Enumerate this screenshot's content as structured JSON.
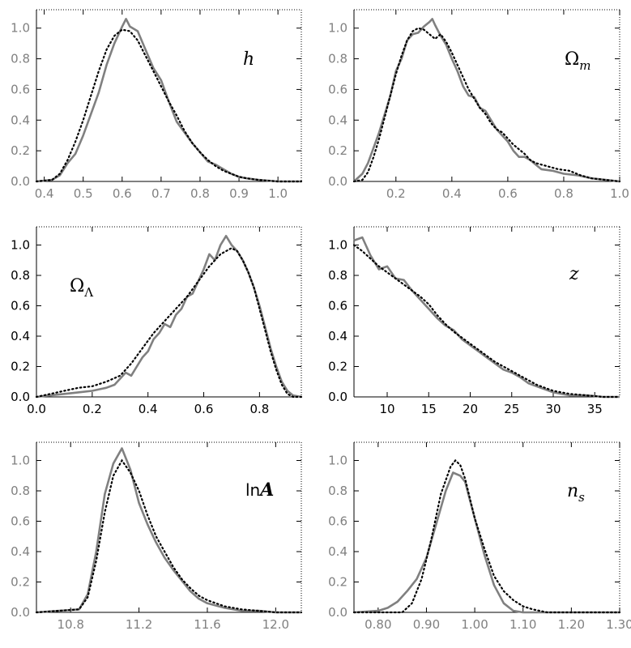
{
  "figure": {
    "line_styles": {
      "solid_color": "#808080",
      "dotted_color": "#000000"
    }
  },
  "chart_data": [
    {
      "type": "line",
      "param_label": "h",
      "xlim": [
        0.38,
        1.06
      ],
      "ylim": [
        0,
        1.12
      ],
      "xticks": [
        0.4,
        0.5,
        0.6,
        0.7,
        0.8,
        0.9,
        1.0
      ],
      "xtick_labels": [
        "0.4",
        "0.5",
        "0.6",
        "0.7",
        "0.8",
        "0.9",
        "1.0"
      ],
      "yticks": [
        0.0,
        0.2,
        0.4,
        0.6,
        0.8,
        1.0
      ],
      "ytick_labels": [
        "0.0",
        "0.2",
        "0.4",
        "0.6",
        "0.8",
        "1.0"
      ],
      "tick_label_color": "#808080",
      "series": [
        {
          "style": "solid",
          "x": [
            0.38,
            0.42,
            0.44,
            0.46,
            0.48,
            0.5,
            0.52,
            0.54,
            0.56,
            0.58,
            0.6,
            0.61,
            0.62,
            0.64,
            0.66,
            0.68,
            0.7,
            0.72,
            0.74,
            0.76,
            0.78,
            0.8,
            0.82,
            0.84,
            0.86,
            0.88,
            0.9,
            0.92,
            0.95,
            1.0,
            1.06
          ],
          "y": [
            0.0,
            0.01,
            0.04,
            0.12,
            0.18,
            0.3,
            0.44,
            0.58,
            0.76,
            0.9,
            1.01,
            1.06,
            1.01,
            0.98,
            0.86,
            0.74,
            0.66,
            0.52,
            0.39,
            0.32,
            0.25,
            0.19,
            0.13,
            0.11,
            0.08,
            0.05,
            0.03,
            0.02,
            0.01,
            0.0,
            0.0
          ]
        },
        {
          "style": "dotted",
          "x": [
            0.38,
            0.42,
            0.44,
            0.46,
            0.48,
            0.5,
            0.52,
            0.54,
            0.56,
            0.58,
            0.6,
            0.62,
            0.64,
            0.66,
            0.68,
            0.7,
            0.72,
            0.74,
            0.76,
            0.78,
            0.8,
            0.82,
            0.84,
            0.86,
            0.88,
            0.9,
            0.92,
            0.95,
            1.0,
            1.06
          ],
          "y": [
            0.0,
            0.01,
            0.05,
            0.14,
            0.26,
            0.4,
            0.56,
            0.72,
            0.86,
            0.95,
            0.99,
            0.98,
            0.92,
            0.82,
            0.72,
            0.62,
            0.52,
            0.43,
            0.33,
            0.25,
            0.19,
            0.14,
            0.1,
            0.07,
            0.05,
            0.03,
            0.02,
            0.01,
            0.0,
            0.0
          ]
        }
      ]
    },
    {
      "type": "line",
      "param_label": "Ω",
      "param_subscript": "m",
      "xlim": [
        0.05,
        1.0
      ],
      "ylim": [
        0,
        1.12
      ],
      "xticks": [
        0.2,
        0.4,
        0.6,
        0.8,
        1.0
      ],
      "xtick_labels": [
        "0.2",
        "0.4",
        "0.6",
        "0.8",
        "1.0"
      ],
      "yticks": [
        0.0,
        0.2,
        0.4,
        0.6,
        0.8,
        1.0
      ],
      "ytick_labels": [
        "0.0",
        "0.2",
        "0.4",
        "0.6",
        "0.8",
        "1.0"
      ],
      "tick_label_color": "#808080",
      "series": [
        {
          "style": "solid",
          "x": [
            0.05,
            0.08,
            0.1,
            0.12,
            0.14,
            0.16,
            0.18,
            0.2,
            0.22,
            0.24,
            0.26,
            0.28,
            0.3,
            0.32,
            0.33,
            0.34,
            0.36,
            0.38,
            0.4,
            0.42,
            0.44,
            0.46,
            0.48,
            0.5,
            0.52,
            0.54,
            0.56,
            0.58,
            0.6,
            0.62,
            0.64,
            0.66,
            0.68,
            0.7,
            0.72,
            0.76,
            0.8,
            0.85,
            0.9,
            0.95,
            1.0
          ],
          "y": [
            0.0,
            0.05,
            0.12,
            0.22,
            0.32,
            0.44,
            0.56,
            0.72,
            0.8,
            0.92,
            0.96,
            0.97,
            1.01,
            1.04,
            1.06,
            1.02,
            0.95,
            0.89,
            0.8,
            0.72,
            0.62,
            0.56,
            0.55,
            0.48,
            0.46,
            0.4,
            0.34,
            0.3,
            0.26,
            0.2,
            0.16,
            0.16,
            0.14,
            0.11,
            0.08,
            0.07,
            0.05,
            0.04,
            0.02,
            0.01,
            0.0
          ]
        },
        {
          "style": "dotted",
          "x": [
            0.05,
            0.08,
            0.1,
            0.12,
            0.14,
            0.16,
            0.18,
            0.2,
            0.22,
            0.24,
            0.26,
            0.28,
            0.3,
            0.32,
            0.34,
            0.36,
            0.38,
            0.4,
            0.42,
            0.44,
            0.46,
            0.48,
            0.5,
            0.52,
            0.54,
            0.56,
            0.58,
            0.6,
            0.62,
            0.64,
            0.66,
            0.68,
            0.7,
            0.74,
            0.78,
            0.82,
            0.86,
            0.9,
            0.95,
            1.0
          ],
          "y": [
            0.0,
            0.01,
            0.06,
            0.16,
            0.28,
            0.42,
            0.56,
            0.7,
            0.82,
            0.92,
            0.98,
            1.0,
            0.99,
            0.96,
            0.93,
            0.96,
            0.91,
            0.84,
            0.76,
            0.68,
            0.6,
            0.54,
            0.48,
            0.44,
            0.38,
            0.34,
            0.32,
            0.28,
            0.24,
            0.21,
            0.18,
            0.14,
            0.12,
            0.1,
            0.08,
            0.07,
            0.04,
            0.02,
            0.01,
            0.0
          ]
        }
      ]
    },
    {
      "type": "line",
      "param_label": "Ω",
      "param_subscript": "Λ",
      "xlim": [
        0.0,
        0.95
      ],
      "ylim": [
        0,
        1.12
      ],
      "xticks": [
        0.0,
        0.2,
        0.4,
        0.6,
        0.8
      ],
      "xtick_labels": [
        "0.0",
        "0.2",
        "0.4",
        "0.6",
        "0.8"
      ],
      "yticks": [
        0.0,
        0.2,
        0.4,
        0.6,
        0.8,
        1.0
      ],
      "ytick_labels": [
        "0.0",
        "0.2",
        "0.4",
        "0.6",
        "0.8",
        "1.0"
      ],
      "tick_label_color": "#000000",
      "series": [
        {
          "style": "solid",
          "x": [
            0.0,
            0.05,
            0.1,
            0.15,
            0.2,
            0.25,
            0.28,
            0.3,
            0.32,
            0.34,
            0.36,
            0.38,
            0.4,
            0.42,
            0.44,
            0.46,
            0.48,
            0.5,
            0.52,
            0.54,
            0.56,
            0.58,
            0.6,
            0.62,
            0.64,
            0.66,
            0.68,
            0.7,
            0.72,
            0.74,
            0.76,
            0.78,
            0.8,
            0.82,
            0.84,
            0.86,
            0.88,
            0.9,
            0.92,
            0.95
          ],
          "y": [
            0.0,
            0.01,
            0.02,
            0.03,
            0.04,
            0.06,
            0.08,
            0.12,
            0.16,
            0.14,
            0.2,
            0.26,
            0.3,
            0.38,
            0.42,
            0.48,
            0.46,
            0.54,
            0.58,
            0.66,
            0.68,
            0.76,
            0.84,
            0.94,
            0.9,
            1.0,
            1.06,
            1.0,
            0.96,
            0.9,
            0.82,
            0.72,
            0.6,
            0.46,
            0.32,
            0.2,
            0.1,
            0.04,
            0.01,
            0.0
          ]
        },
        {
          "style": "dotted",
          "x": [
            0.0,
            0.05,
            0.1,
            0.15,
            0.2,
            0.25,
            0.3,
            0.34,
            0.38,
            0.42,
            0.46,
            0.5,
            0.54,
            0.58,
            0.62,
            0.66,
            0.7,
            0.72,
            0.74,
            0.76,
            0.78,
            0.8,
            0.82,
            0.84,
            0.86,
            0.88,
            0.9,
            0.92,
            0.95
          ],
          "y": [
            0.0,
            0.02,
            0.04,
            0.06,
            0.07,
            0.1,
            0.14,
            0.22,
            0.32,
            0.42,
            0.5,
            0.58,
            0.66,
            0.76,
            0.86,
            0.94,
            0.98,
            0.96,
            0.9,
            0.82,
            0.72,
            0.58,
            0.44,
            0.3,
            0.18,
            0.08,
            0.02,
            0.0,
            0.0
          ]
        }
      ]
    },
    {
      "type": "line",
      "param_label": "z",
      "xlim": [
        6,
        38
      ],
      "ylim": [
        0,
        1.12
      ],
      "xticks": [
        10,
        15,
        20,
        25,
        30,
        35
      ],
      "xtick_labels": [
        "10",
        "15",
        "20",
        "25",
        "30",
        "35"
      ],
      "yticks": [
        0.0,
        0.2,
        0.4,
        0.6,
        0.8,
        1.0
      ],
      "ytick_labels": [
        "0.0",
        "0.2",
        "0.4",
        "0.6",
        "0.8",
        "1.0"
      ],
      "tick_label_color": "#000000",
      "series": [
        {
          "style": "solid",
          "x": [
            6,
            7,
            8,
            9,
            10,
            11,
            12,
            13,
            14,
            15,
            16,
            17,
            18,
            19,
            20,
            21,
            22,
            23,
            24,
            25,
            26,
            27,
            28,
            29,
            30,
            32,
            34,
            36,
            38
          ],
          "y": [
            1.03,
            1.05,
            0.93,
            0.84,
            0.86,
            0.78,
            0.77,
            0.7,
            0.64,
            0.58,
            0.52,
            0.47,
            0.44,
            0.38,
            0.34,
            0.3,
            0.26,
            0.22,
            0.18,
            0.16,
            0.13,
            0.09,
            0.07,
            0.05,
            0.03,
            0.01,
            0.01,
            0.0,
            0.0
          ]
        },
        {
          "style": "dotted",
          "x": [
            6,
            7,
            8,
            9,
            10,
            11,
            12,
            13,
            14,
            15,
            16,
            17,
            18,
            19,
            20,
            21,
            22,
            23,
            24,
            25,
            26,
            27,
            28,
            29,
            30,
            32,
            34,
            36,
            38
          ],
          "y": [
            1.0,
            0.96,
            0.91,
            0.86,
            0.82,
            0.78,
            0.74,
            0.7,
            0.66,
            0.61,
            0.54,
            0.48,
            0.43,
            0.39,
            0.35,
            0.31,
            0.27,
            0.23,
            0.2,
            0.17,
            0.14,
            0.11,
            0.08,
            0.06,
            0.04,
            0.02,
            0.01,
            0.0,
            0.0
          ]
        }
      ]
    },
    {
      "type": "line",
      "param_label": "ln",
      "param_label_suffix": "A",
      "xlim": [
        10.6,
        12.15
      ],
      "ylim": [
        0,
        1.12
      ],
      "xticks": [
        10.8,
        11.2,
        11.6,
        12.0
      ],
      "xtick_labels": [
        "10.8",
        "11.2",
        "11.6",
        "12.0"
      ],
      "yticks": [
        0.0,
        0.2,
        0.4,
        0.6,
        0.8,
        1.0
      ],
      "ytick_labels": [
        "0.0",
        "0.2",
        "0.4",
        "0.6",
        "0.8",
        "1.0"
      ],
      "tick_label_color": "#808080",
      "series": [
        {
          "style": "solid",
          "x": [
            10.6,
            10.85,
            10.9,
            10.95,
            11.0,
            11.05,
            11.1,
            11.15,
            11.2,
            11.25,
            11.3,
            11.35,
            11.4,
            11.45,
            11.5,
            11.55,
            11.6,
            11.7,
            11.8,
            11.9,
            12.0,
            12.15
          ],
          "y": [
            0.0,
            0.02,
            0.12,
            0.4,
            0.78,
            0.98,
            1.08,
            0.94,
            0.72,
            0.58,
            0.46,
            0.36,
            0.28,
            0.21,
            0.14,
            0.09,
            0.06,
            0.03,
            0.01,
            0.01,
            0.0,
            0.0
          ]
        },
        {
          "style": "dotted",
          "x": [
            10.6,
            10.85,
            10.9,
            10.95,
            11.0,
            11.05,
            11.1,
            11.15,
            11.2,
            11.25,
            11.3,
            11.35,
            11.4,
            11.45,
            11.5,
            11.55,
            11.6,
            11.7,
            11.8,
            11.9,
            12.0,
            12.15
          ],
          "y": [
            0.0,
            0.02,
            0.1,
            0.34,
            0.66,
            0.9,
            1.0,
            0.92,
            0.8,
            0.64,
            0.5,
            0.4,
            0.3,
            0.22,
            0.16,
            0.11,
            0.08,
            0.04,
            0.02,
            0.01,
            0.0,
            0.0
          ]
        }
      ]
    },
    {
      "type": "line",
      "param_label": "n",
      "param_subscript": "s",
      "xlim": [
        0.75,
        1.3
      ],
      "ylim": [
        0,
        1.12
      ],
      "xticks": [
        0.8,
        0.9,
        1.0,
        1.1,
        1.2,
        1.3
      ],
      "xtick_labels": [
        "0.80",
        "0.90",
        "1.00",
        "1.10",
        "1.20",
        "1.30"
      ],
      "yticks": [
        0.0,
        0.2,
        0.4,
        0.6,
        0.8,
        1.0
      ],
      "ytick_labels": [
        "0.0",
        "0.2",
        "0.4",
        "0.6",
        "0.8",
        "1.0"
      ],
      "tick_label_color": "#808080",
      "series": [
        {
          "style": "solid",
          "x": [
            0.75,
            0.8,
            0.82,
            0.84,
            0.86,
            0.88,
            0.9,
            0.92,
            0.94,
            0.955,
            0.97,
            0.98,
            0.99,
            1.0,
            1.02,
            1.04,
            1.06,
            1.08,
            1.1,
            1.15,
            1.3
          ],
          "y": [
            0.0,
            0.01,
            0.03,
            0.07,
            0.14,
            0.22,
            0.36,
            0.58,
            0.8,
            0.92,
            0.9,
            0.86,
            0.74,
            0.62,
            0.38,
            0.18,
            0.06,
            0.01,
            0.0,
            0.0,
            0.0
          ]
        },
        {
          "style": "dotted",
          "x": [
            0.75,
            0.85,
            0.87,
            0.89,
            0.91,
            0.93,
            0.95,
            0.96,
            0.97,
            0.98,
            1.0,
            1.02,
            1.04,
            1.06,
            1.08,
            1.1,
            1.12,
            1.15,
            1.3
          ],
          "y": [
            0.0,
            0.0,
            0.06,
            0.22,
            0.48,
            0.78,
            0.96,
            1.0,
            0.97,
            0.88,
            0.62,
            0.42,
            0.24,
            0.14,
            0.08,
            0.04,
            0.02,
            0.0,
            0.0
          ]
        }
      ]
    }
  ]
}
